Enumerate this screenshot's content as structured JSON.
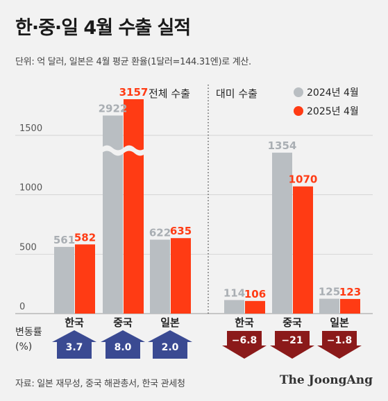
{
  "title": "한·중·일 4월 수출 실적",
  "subtitle": "단위: 억 달러, 일본은 4월 평균 환율(1달러=144.31엔)로 계산.",
  "source": "자료: 일본 재무성, 중국 해관총서, 한국 관세청",
  "brand": "The JoongAng",
  "change_label_line1": "변동률",
  "change_label_line2": "(%)",
  "colors": {
    "series_2024": "#b9bec2",
    "series_2025": "#ff3b14",
    "up_arrow": "#3a4a92",
    "down_arrow": "#8b1a1a"
  },
  "chart_data": {
    "type": "bar",
    "y_ticks": [
      0,
      500,
      1000,
      1500
    ],
    "axis_break": true,
    "legend_placement": "top-right",
    "series": [
      {
        "name": "2024년 4월",
        "color": "#b9bec2"
      },
      {
        "name": "2025년 4월",
        "color": "#ff3b14"
      }
    ],
    "panels": [
      {
        "label": "전체 수출",
        "categories": [
          "한국",
          "중국",
          "일본"
        ],
        "values_2024": [
          561,
          2922,
          622
        ],
        "values_2025": [
          582,
          3157,
          635
        ],
        "change_pct": [
          "3.7",
          "8.0",
          "2.0"
        ],
        "direction": "up"
      },
      {
        "label": "대미 수출",
        "categories": [
          "한국",
          "중국",
          "일본"
        ],
        "values_2024": [
          114,
          1354,
          125
        ],
        "values_2025": [
          106,
          1070,
          123
        ],
        "change_pct": [
          "−6.8",
          "−21",
          "−1.8"
        ],
        "direction": "down"
      }
    ]
  }
}
